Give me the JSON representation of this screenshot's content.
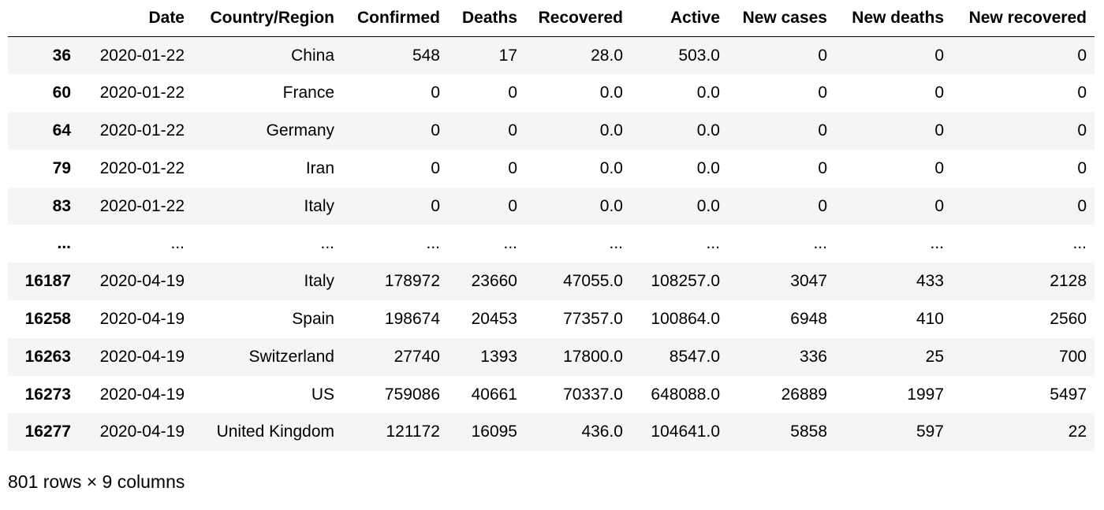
{
  "table": {
    "index_header": "",
    "columns": [
      "Date",
      "Country/Region",
      "Confirmed",
      "Deaths",
      "Recovered",
      "Active",
      "New cases",
      "New deaths",
      "New recovered"
    ],
    "rows": [
      {
        "index": "36",
        "cells": [
          "2020-01-22",
          "China",
          "548",
          "17",
          "28.0",
          "503.0",
          "0",
          "0",
          "0"
        ]
      },
      {
        "index": "60",
        "cells": [
          "2020-01-22",
          "France",
          "0",
          "0",
          "0.0",
          "0.0",
          "0",
          "0",
          "0"
        ]
      },
      {
        "index": "64",
        "cells": [
          "2020-01-22",
          "Germany",
          "0",
          "0",
          "0.0",
          "0.0",
          "0",
          "0",
          "0"
        ]
      },
      {
        "index": "79",
        "cells": [
          "2020-01-22",
          "Iran",
          "0",
          "0",
          "0.0",
          "0.0",
          "0",
          "0",
          "0"
        ]
      },
      {
        "index": "83",
        "cells": [
          "2020-01-22",
          "Italy",
          "0",
          "0",
          "0.0",
          "0.0",
          "0",
          "0",
          "0"
        ]
      },
      {
        "index": "...",
        "cells": [
          "...",
          "...",
          "...",
          "...",
          "...",
          "...",
          "...",
          "...",
          "..."
        ]
      },
      {
        "index": "16187",
        "cells": [
          "2020-04-19",
          "Italy",
          "178972",
          "23660",
          "47055.0",
          "108257.0",
          "3047",
          "433",
          "2128"
        ]
      },
      {
        "index": "16258",
        "cells": [
          "2020-04-19",
          "Spain",
          "198674",
          "20453",
          "77357.0",
          "100864.0",
          "6948",
          "410",
          "2560"
        ]
      },
      {
        "index": "16263",
        "cells": [
          "2020-04-19",
          "Switzerland",
          "27740",
          "1393",
          "17800.0",
          "8547.0",
          "336",
          "25",
          "700"
        ]
      },
      {
        "index": "16273",
        "cells": [
          "2020-04-19",
          "US",
          "759086",
          "40661",
          "70337.0",
          "648088.0",
          "26889",
          "1997",
          "5497"
        ]
      },
      {
        "index": "16277",
        "cells": [
          "2020-04-19",
          "United Kingdom",
          "121172",
          "16095",
          "436.0",
          "104641.0",
          "5858",
          "597",
          "22"
        ]
      }
    ]
  },
  "shape_summary": "801 rows × 9 columns"
}
